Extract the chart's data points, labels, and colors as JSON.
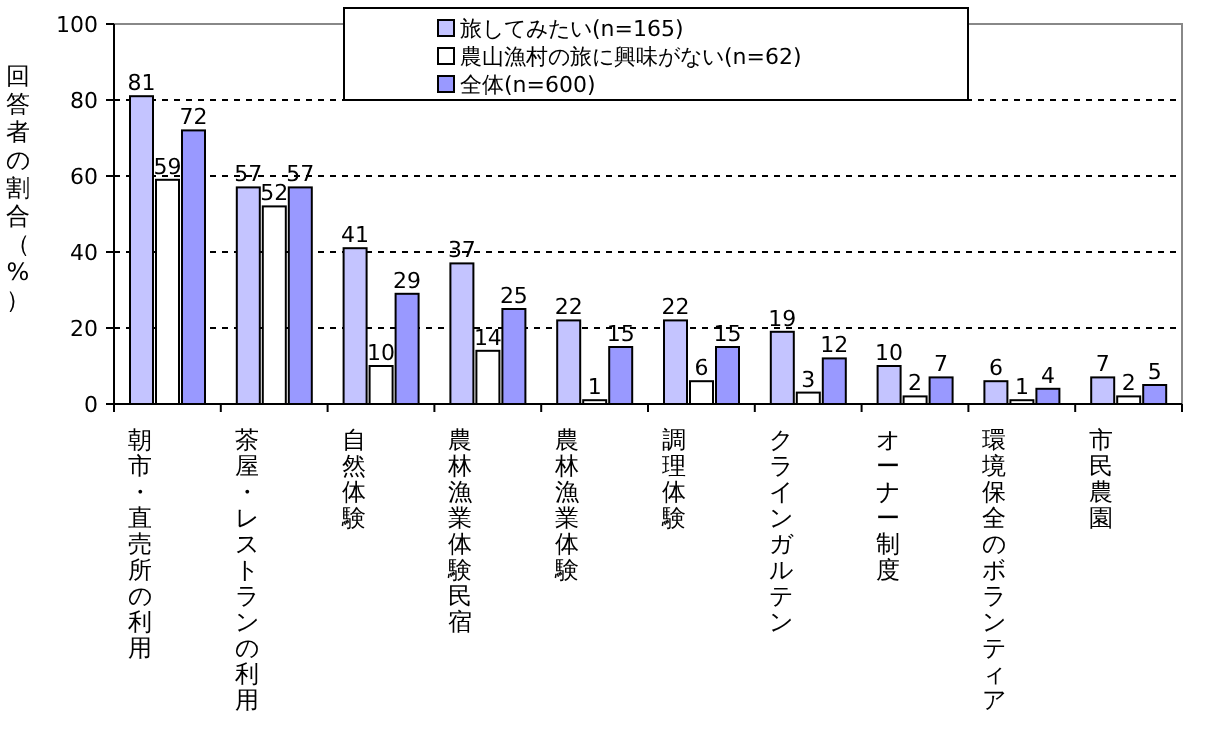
{
  "chart_data": {
    "type": "bar",
    "ylabel": "回答者の割合（%）",
    "categories": [
      "朝市・直売所の利用",
      "茶屋・レストランの利用",
      "自然体験",
      "農林漁業体験民宿",
      "農林漁業体験",
      "調理体験",
      "クラインガルテン",
      "オーナー制度",
      "環境保全のボランティア",
      "市民農園"
    ],
    "series": [
      {
        "name": "旅してみたい(n=165)",
        "color": "#c4c4ff",
        "values": [
          81,
          57,
          41,
          37,
          22,
          22,
          19,
          10,
          6,
          7
        ]
      },
      {
        "name": "農山漁村の旅に興味がない(n=62)",
        "color": "#ffffff",
        "values": [
          59,
          52,
          10,
          14,
          1,
          6,
          3,
          2,
          1,
          2
        ]
      },
      {
        "name": "全体(n=600)",
        "color": "#9999ff",
        "values": [
          72,
          57,
          29,
          25,
          15,
          15,
          12,
          7,
          4,
          5
        ]
      }
    ],
    "ylim": [
      0,
      100
    ],
    "yticks": [
      0,
      20,
      40,
      60,
      80,
      100
    ],
    "grid": "y",
    "line_style": "dashed",
    "legend": "top",
    "data_labels": true
  }
}
